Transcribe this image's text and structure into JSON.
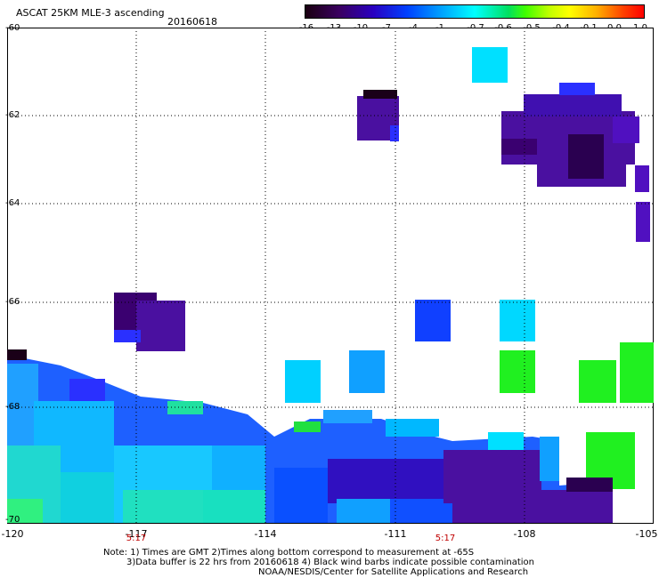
{
  "header": {
    "title": "ASCAT 25KM MLE-3 ascending",
    "date": "20160618"
  },
  "colorbar": {
    "ticks": [
      "-16",
      "-13",
      "-10",
      "-7",
      "-4",
      "-1",
      "-0.7",
      "-0.6",
      "-0.5",
      "-0.4",
      "-0.1",
      "0.0",
      "1.0"
    ],
    "colors": [
      "#1a0010",
      "#3a0060",
      "#2a00c0",
      "#0040ff",
      "#00a0ff",
      "#00ffff",
      "#00e060",
      "#40ff00",
      "#c0ff00",
      "#ffff00",
      "#ffb000",
      "#ff4000",
      "#ff0000"
    ]
  },
  "map": {
    "lat_labels": [
      "-60",
      "-62",
      "-64",
      "-66",
      "-68",
      "-70"
    ],
    "lon_labels": [
      "-120",
      "-117",
      "-114",
      "-111",
      "-108",
      "-105"
    ],
    "time_labels": [
      "5:17",
      "5:17"
    ],
    "colors": {
      "deep_purple": "#3a0070",
      "purple": "#4a10a0",
      "dark": "#1a0018",
      "blue": "#1040ff",
      "azure": "#10a0ff",
      "cyan": "#00e0ff",
      "green": "#20f020"
    }
  },
  "footer": {
    "line1": "Note: 1) Times are GMT 2)Times along bottom correspond to measurement at -65S",
    "line2": "3)Data buffer is 22 hrs from 20160618 4) Black wind barbs indicate possible contamination",
    "line3": "NOAA/NESDIS/Center for Satellite Applications and Research"
  }
}
